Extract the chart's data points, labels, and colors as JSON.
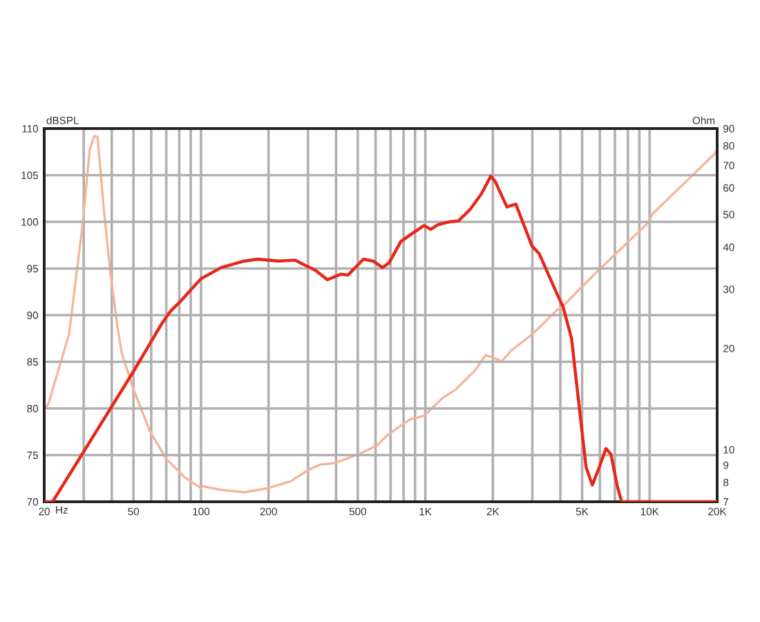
{
  "chart_data": {
    "type": "line",
    "xlabel": "Hz",
    "ylabel": "Ohm",
    "y2label": "dBSPL",
    "xlim": [
      20,
      20000
    ],
    "xticks": [
      20,
      {
        "value": 30,
        "label": null
      },
      {
        "value": 40,
        "label": null
      },
      50,
      {
        "value": 60,
        "label": null
      },
      {
        "value": 70,
        "label": null
      },
      {
        "value": 80,
        "label": null
      },
      {
        "value": 90,
        "label": null
      },
      100,
      200,
      {
        "value": 300,
        "label": null
      },
      {
        "value": 400,
        "label": null
      },
      500,
      {
        "value": 600,
        "label": null
      },
      {
        "value": 700,
        "label": null
      },
      {
        "value": 800,
        "label": null
      },
      {
        "value": 900,
        "label": null
      },
      {
        "value": 1000,
        "label": "1K"
      },
      {
        "value": 2000,
        "label": "2K"
      },
      {
        "value": 3000,
        "label": null
      },
      {
        "value": 4000,
        "label": null
      },
      {
        "value": 5000,
        "label": "5K"
      },
      {
        "value": 6000,
        "label": null
      },
      {
        "value": 7000,
        "label": null
      },
      {
        "value": 8000,
        "label": null
      },
      {
        "value": 9000,
        "label": null
      },
      {
        "value": 10000,
        "label": "10K"
      },
      {
        "value": 20000,
        "label": "20K"
      }
    ],
    "ylim": [
      7,
      90
    ],
    "yticks": [
      7,
      8,
      9,
      10,
      20,
      30,
      40,
      50,
      60,
      70,
      80,
      90
    ],
    "y2lim": [
      70,
      110
    ],
    "y2ticks": [
      70,
      75,
      80,
      85,
      90,
      95,
      100,
      105,
      110
    ],
    "log": "xy",
    "grid": true,
    "series": [
      {
        "color": "#e8261a",
        "axis": "y2",
        "x": [
          20,
          21.8,
          50.1,
          66.5,
          73,
          80.4,
          100,
          123,
          156,
          179,
          222,
          262,
          288,
          324,
          366,
          421,
          452,
          530,
          586,
          644,
          689,
          778,
          856,
          986,
          1058,
          1138,
          1278,
          1404,
          1580,
          1778,
          1958,
          2052,
          2310,
          2532,
          2990,
          3217,
          3878,
          4110,
          4486,
          4832,
          5208,
          5552,
          5963,
          6383,
          6720,
          7172,
          7500,
          20000
        ],
        "values": [
          70,
          70,
          84.0,
          89.0,
          90.4,
          91.4,
          93.9,
          95.1,
          95.8,
          96.0,
          95.8,
          95.9,
          95.4,
          94.8,
          93.8,
          94.4,
          94.3,
          96.0,
          95.8,
          95.1,
          95.6,
          97.9,
          98.6,
          99.6,
          99.2,
          99.7,
          100.0,
          100.1,
          101.3,
          103.0,
          104.9,
          104.3,
          101.6,
          101.9,
          97.4,
          96.6,
          92.2,
          90.9,
          87.5,
          80.6,
          73.7,
          71.8,
          73.7,
          75.7,
          75.1,
          71.7,
          70,
          70
        ]
      },
      {
        "color": "#f7b39a",
        "x": [
          20,
          20.9,
          23.4,
          25.8,
          29.7,
          31.9,
          33.4,
          34.6,
          36.9,
          39.3,
          42.3,
          44.3,
          50,
          59,
          69.8,
          84.2,
          100,
          102,
          123,
          156,
          197,
          250,
          301,
          340,
          392,
          440,
          507,
          610,
          674,
          778,
          856,
          986,
          1189,
          1367,
          1653,
          1859,
          1994,
          2192,
          2416,
          2915,
          3317,
          3814,
          4076,
          5963,
          10000,
          10240,
          19570,
          20000
        ],
        "values": [
          13.2,
          13.7,
          17.7,
          22.0,
          47.0,
          77.8,
          85.5,
          85.0,
          51.6,
          34.3,
          23.5,
          19.4,
          15.1,
          11.4,
          9.4,
          8.3,
          7.67,
          7.78,
          7.59,
          7.47,
          7.67,
          8.04,
          8.7,
          9.03,
          9.11,
          9.37,
          9.7,
          10.3,
          11.0,
          11.8,
          12.3,
          12.6,
          14.2,
          15.1,
          17.1,
          19.1,
          18.8,
          18.3,
          19.7,
          21.7,
          23.5,
          25.8,
          26.6,
          34.3,
          47.7,
          50.0,
          75.9,
          78.0
        ]
      }
    ]
  }
}
